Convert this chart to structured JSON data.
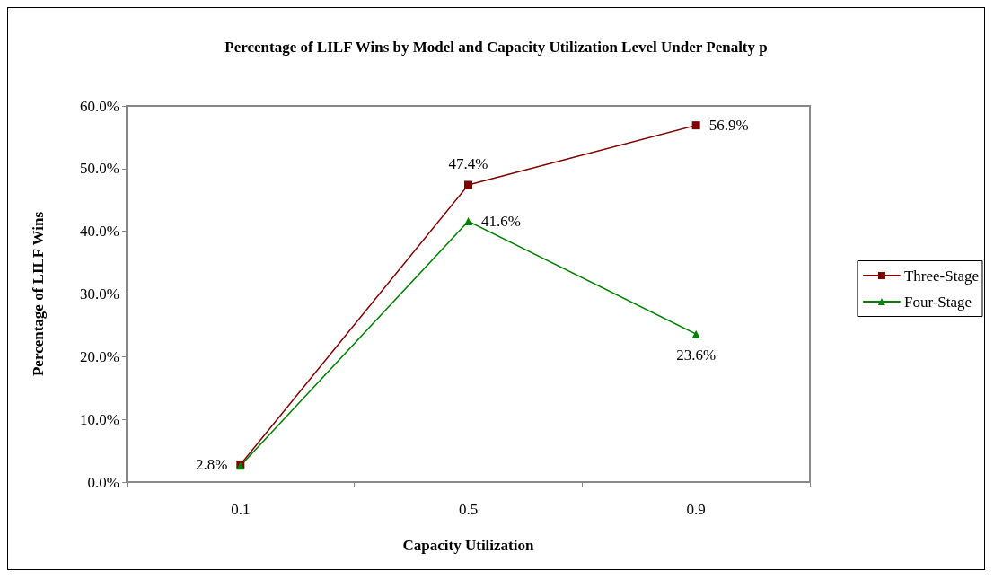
{
  "chart_data": {
    "type": "line",
    "title": "Percentage of LILF Wins by Model and Capacity Utilization Level Under Penalty p",
    "xlabel": "Capacity Utilization",
    "ylabel": "Percentage of LILF Wins",
    "categories": [
      "0.1",
      "0.5",
      "0.9"
    ],
    "series": [
      {
        "name": "Three-Stage",
        "color": "#800000",
        "marker": "square",
        "values": [
          2.8,
          47.4,
          56.9
        ],
        "value_labels": [
          "2.8%",
          "47.4%",
          "56.9%"
        ]
      },
      {
        "name": "Four-Stage",
        "color": "#008000",
        "marker": "triangle",
        "values": [
          2.6,
          41.6,
          23.6
        ],
        "value_labels": [
          null,
          "41.6%",
          "23.6%"
        ]
      }
    ],
    "ylim": [
      0,
      60
    ],
    "yticks": [
      {
        "value": 0,
        "label": "0.0%"
      },
      {
        "value": 10,
        "label": "10.0%"
      },
      {
        "value": 20,
        "label": "20.0%"
      },
      {
        "value": 30,
        "label": "30.0%"
      },
      {
        "value": 40,
        "label": "40.0%"
      },
      {
        "value": 50,
        "label": "50.0%"
      },
      {
        "value": 60,
        "label": "60.0%"
      }
    ],
    "grid": false,
    "legend": "right",
    "line_style": "solid"
  }
}
